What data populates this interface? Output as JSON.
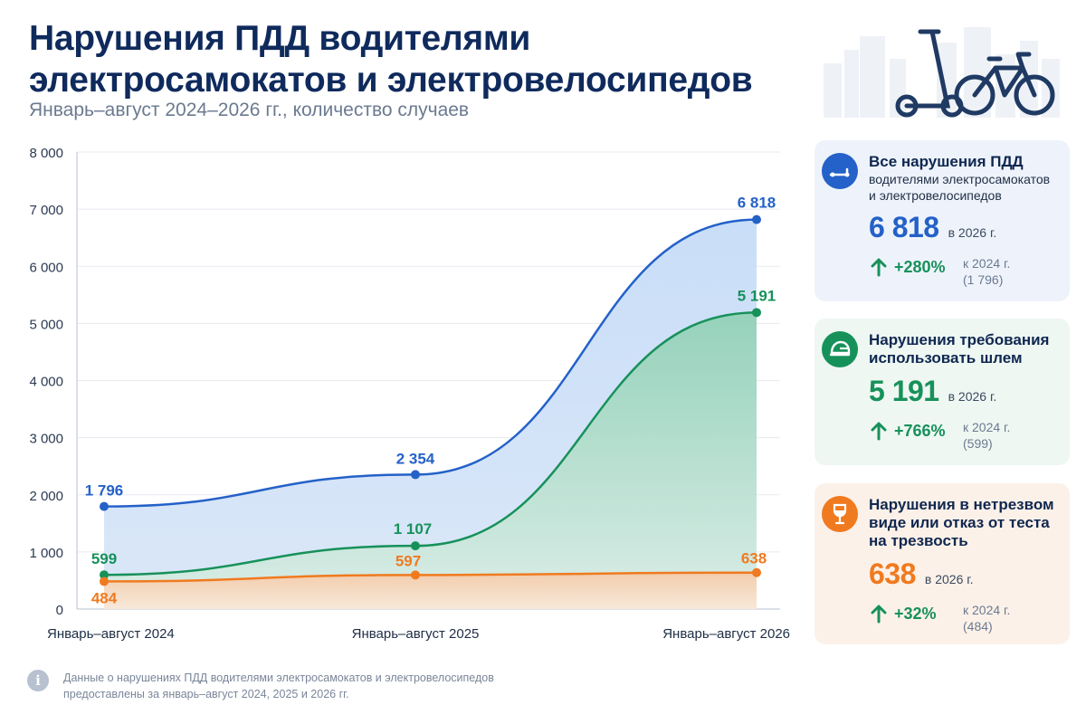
{
  "header": {
    "title_line1": "Нарушения ПДД водителями",
    "title_line2": "электросамокатов и электровелосипедов",
    "subtitle": "Январь–август 2024–2026 гг., количество случаев"
  },
  "colors": {
    "blue": "#2461c8",
    "green": "#17915a",
    "orange": "#f07a1f",
    "title": "#0f2a5c"
  },
  "chart_data": {
    "type": "area",
    "categories": [
      "Январь–август 2024",
      "Январь–август 2025",
      "Январь–август 2026"
    ],
    "ylim": [
      0,
      8000
    ],
    "yticks": [
      0,
      1000,
      2000,
      3000,
      4000,
      5000,
      6000,
      7000,
      8000
    ],
    "ytick_labels": [
      "0",
      "1 000",
      "2 000",
      "3 000",
      "4 000",
      "5 000",
      "6 000",
      "7 000",
      "8 000"
    ],
    "grid": true,
    "series": [
      {
        "key": "all",
        "color": "#2461c8",
        "values": [
          1796,
          2354,
          6818
        ],
        "labels": [
          "1 796",
          "2 354",
          "6 818"
        ]
      },
      {
        "key": "helmet",
        "color": "#17915a",
        "values": [
          599,
          1107,
          5191
        ],
        "labels": [
          "599",
          "1 107",
          "5 191"
        ]
      },
      {
        "key": "drunk",
        "color": "#f07a1f",
        "values": [
          484,
          597,
          638
        ],
        "labels": [
          "484",
          "597",
          "638"
        ]
      }
    ]
  },
  "cards": [
    {
      "icon": "scooter-icon",
      "title": "Все нарушения ПДД",
      "desc": "водителями электросамокатов и электровелосипедов",
      "value": "6 818",
      "year": "в 2026 г.",
      "change": "+280%",
      "base_line1": "к 2024 г.",
      "base_line2": "(1 796)"
    },
    {
      "icon": "helmet-icon",
      "title": "Нарушения требования использовать шлем",
      "desc": "",
      "value": "5 191",
      "year": "в 2026 г.",
      "change": "+766%",
      "base_line1": "к 2024 г.",
      "base_line2": "(599)"
    },
    {
      "icon": "wine-glass-icon",
      "title": "Нарушения в нетрезвом виде или отказ от теста на трезвость",
      "desc": "",
      "value": "638",
      "year": "в 2026 г.",
      "change": "+32%",
      "base_line1": "к 2024 г.",
      "base_line2": "(484)"
    }
  ],
  "footnote": {
    "icon": "info-icon",
    "text": "Данные о нарушениях ПДД водителями электросамокатов и электровелосипедов предоставлены за январь–август 2024, 2025 и 2026 гг."
  }
}
